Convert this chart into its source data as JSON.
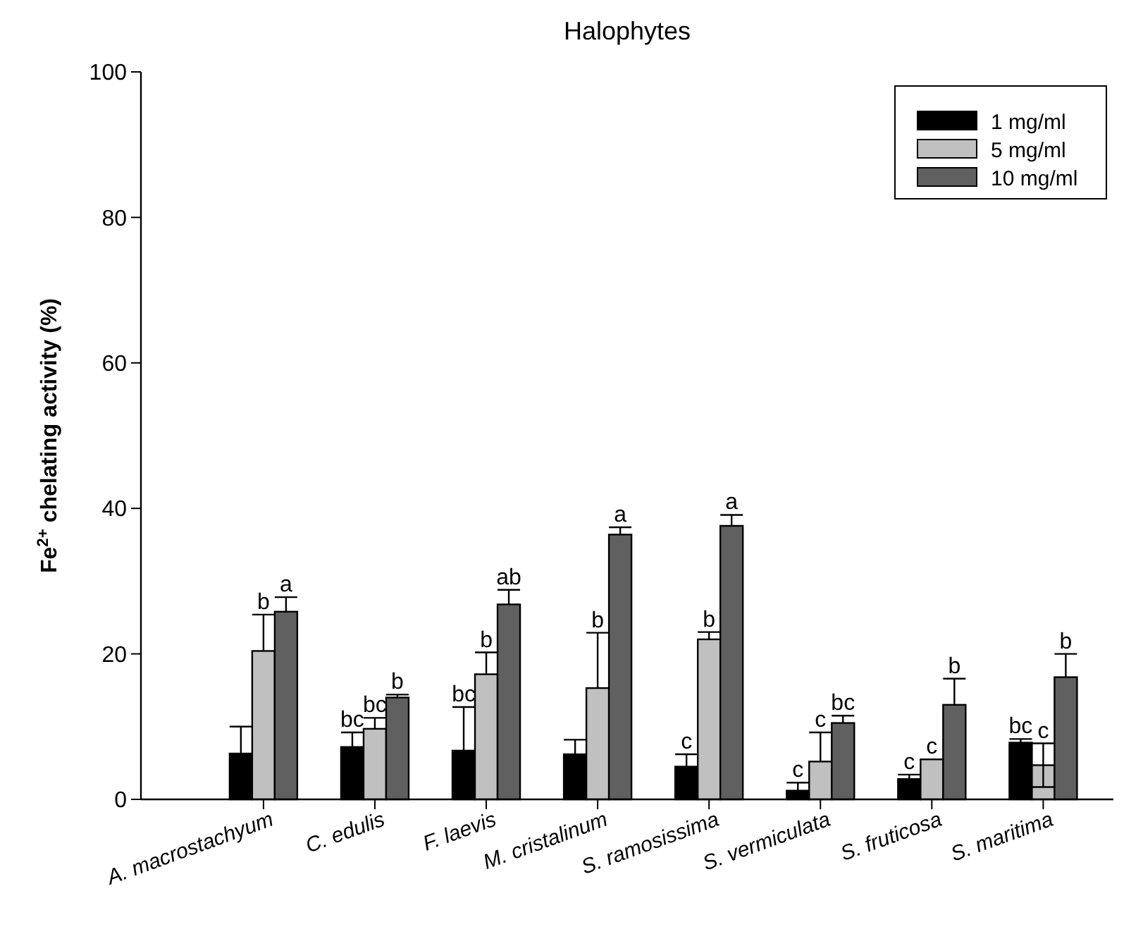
{
  "chart_data": {
    "type": "bar",
    "title": "Halophytes",
    "ylabel": "Fe$^{2+}$ chelating activity (%)",
    "categories": [
      "A. macrostachyum",
      "C. edulis",
      "F. laevis",
      "M. cristalinum",
      "S. ramosissima",
      "S. vermiculata",
      "S. fruticosa",
      "S. maritima"
    ],
    "series": [
      {
        "name": "1 mg/ml",
        "color": "#000000",
        "values": [
          6.3,
          7.2,
          6.7,
          6.2,
          4.5,
          1.2,
          2.8,
          7.8
        ],
        "errors": [
          [
            6.3,
            10
          ],
          [
            7.2,
            9.2
          ],
          [
            6.7,
            12.7
          ],
          [
            6.2,
            8.2
          ],
          [
            4.5,
            6.2
          ],
          [
            1.2,
            2.3
          ],
          [
            2.8,
            3.4
          ],
          [
            7.8,
            8.3
          ]
        ],
        "value_labels": [
          null,
          "bc",
          "bc",
          null,
          "c",
          "c",
          "c",
          "bc"
        ]
      },
      {
        "name": "5 mg/ml",
        "color": "#c0c0c0",
        "values": [
          20.4,
          9.7,
          17.2,
          15.3,
          22,
          5.2,
          5.5,
          4.7
        ],
        "errors": [
          [
            20.4,
            25.4
          ],
          [
            9.7,
            11.2
          ],
          [
            17.2,
            20.2
          ],
          [
            15.3,
            22.9
          ],
          [
            22,
            23
          ],
          [
            5.2,
            9.2
          ],
          null,
          [
            1.7,
            7.7
          ]
        ],
        "value_labels": [
          "b",
          "bc",
          "b",
          "b",
          "b",
          "c",
          "c",
          "c"
        ]
      },
      {
        "name": "10 mg/ml",
        "color": "#606060",
        "values": [
          25.8,
          14,
          26.8,
          36.4,
          37.6,
          10.5,
          13,
          16.8
        ],
        "errors": [
          [
            25.8,
            27.8
          ],
          [
            14,
            14.4
          ],
          [
            26.8,
            28.8
          ],
          [
            36.4,
            37.4
          ],
          [
            37.6,
            39.1
          ],
          [
            10.5,
            11.5
          ],
          [
            13,
            16.6
          ],
          [
            16.8,
            20
          ]
        ],
        "value_labels": [
          "a",
          "b",
          "ab",
          "a",
          "a",
          "bc",
          "b",
          "b"
        ]
      }
    ],
    "ylim": [
      0,
      100
    ],
    "yticks": [
      0,
      20,
      40,
      60,
      80,
      100
    ],
    "legend": "top right"
  }
}
